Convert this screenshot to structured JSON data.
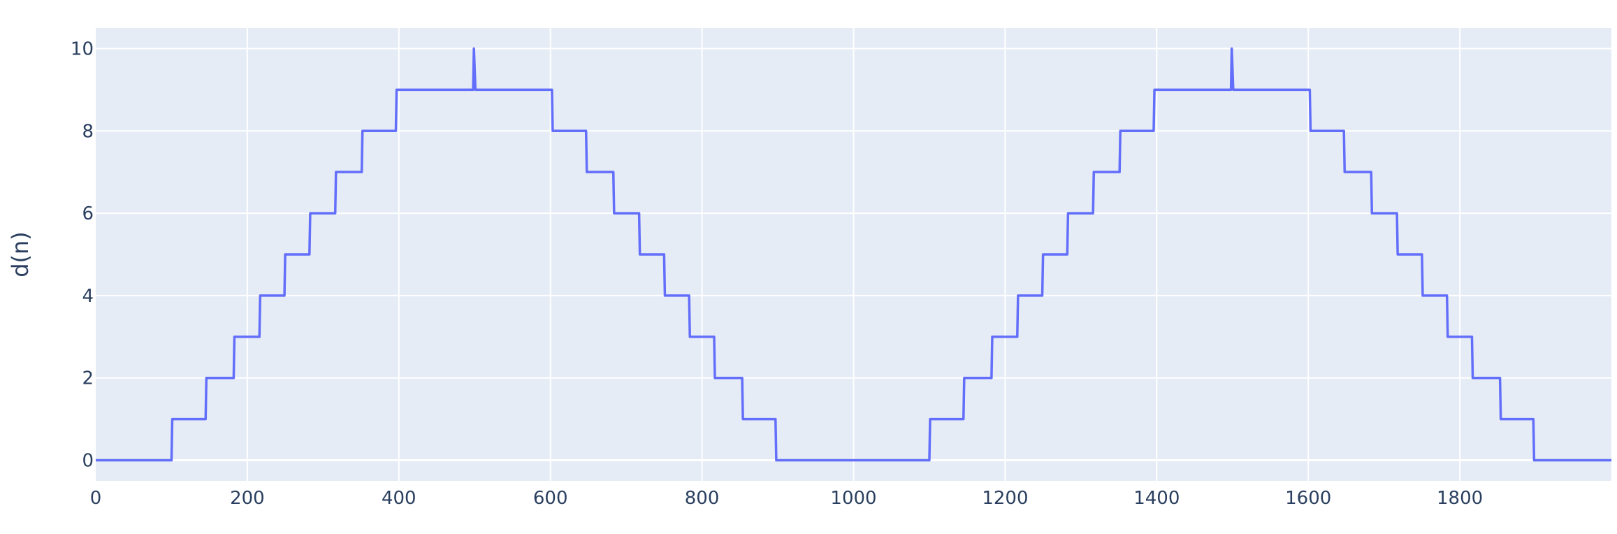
{
  "chart_data": {
    "type": "line",
    "title": "",
    "xlabel": "",
    "ylabel": "d(n)",
    "xlim": [
      0,
      2000
    ],
    "ylim": [
      -0.5,
      10.5
    ],
    "x_ticks": [
      0,
      200,
      400,
      600,
      800,
      1000,
      1200,
      1400,
      1600,
      1800
    ],
    "y_ticks": [
      0,
      2,
      4,
      6,
      8,
      10
    ],
    "grid": true,
    "legend": "none",
    "colors": {
      "plot_bg": "#E5ECF6",
      "grid": "#ffffff",
      "line": "#636EFA",
      "text": "#2a3f5f"
    },
    "series": [
      {
        "x": [
          0,
          100,
          101,
          145,
          146,
          182,
          183,
          216,
          217,
          249,
          250,
          282,
          283,
          316,
          317,
          351,
          352,
          396,
          397,
          498,
          499,
          501,
          502,
          602,
          603,
          647,
          648,
          683,
          684,
          717,
          718,
          750,
          751,
          783,
          784,
          816,
          817,
          853,
          854,
          897,
          898,
          1100,
          1101,
          1145,
          1146,
          1182,
          1183,
          1216,
          1217,
          1249,
          1250,
          1282,
          1283,
          1316,
          1317,
          1351,
          1352,
          1396,
          1397,
          1498,
          1499,
          1501,
          1502,
          1602,
          1603,
          1647,
          1648,
          1683,
          1684,
          1717,
          1718,
          1750,
          1751,
          1783,
          1784,
          1816,
          1817,
          1853,
          1854,
          1897,
          1898,
          2000
        ],
        "y": [
          0,
          0,
          1,
          1,
          2,
          2,
          3,
          3,
          4,
          4,
          5,
          5,
          6,
          6,
          7,
          7,
          8,
          8,
          9,
          9,
          10,
          9,
          9,
          9,
          8,
          8,
          7,
          7,
          6,
          6,
          5,
          5,
          4,
          4,
          3,
          3,
          2,
          2,
          1,
          1,
          0,
          0,
          1,
          1,
          2,
          2,
          3,
          3,
          4,
          4,
          5,
          5,
          6,
          6,
          7,
          7,
          8,
          8,
          9,
          9,
          10,
          9,
          9,
          9,
          8,
          8,
          7,
          7,
          6,
          6,
          5,
          5,
          4,
          4,
          3,
          3,
          2,
          2,
          1,
          1,
          0,
          0
        ]
      }
    ]
  }
}
